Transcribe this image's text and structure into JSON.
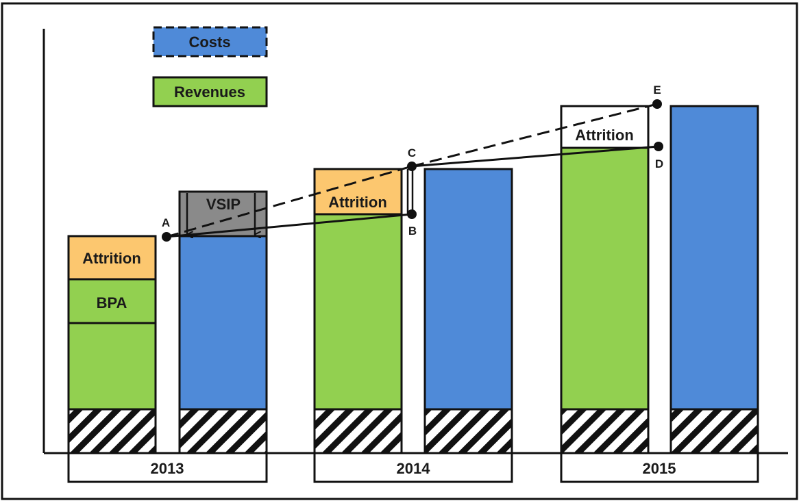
{
  "legend": {
    "costs_label": "Costs",
    "revenues_label": "Revenues"
  },
  "years": {
    "y2013": "2013",
    "y2014": "2014",
    "y2015": "2015"
  },
  "segments": {
    "attrition_2013": "Attrition",
    "bpa_2013": "BPA",
    "vsip_2013": "VSIP",
    "attrition_2014": "Attrition",
    "attrition_2015": "Attrition"
  },
  "points": {
    "a": "A",
    "b": "B",
    "c": "C",
    "d": "D",
    "e": "E"
  },
  "colors": {
    "revenue": "#92d050",
    "cost": "#4f8ad8",
    "attrition": "#fcc76f",
    "vsip": "#8a8a8a"
  }
}
